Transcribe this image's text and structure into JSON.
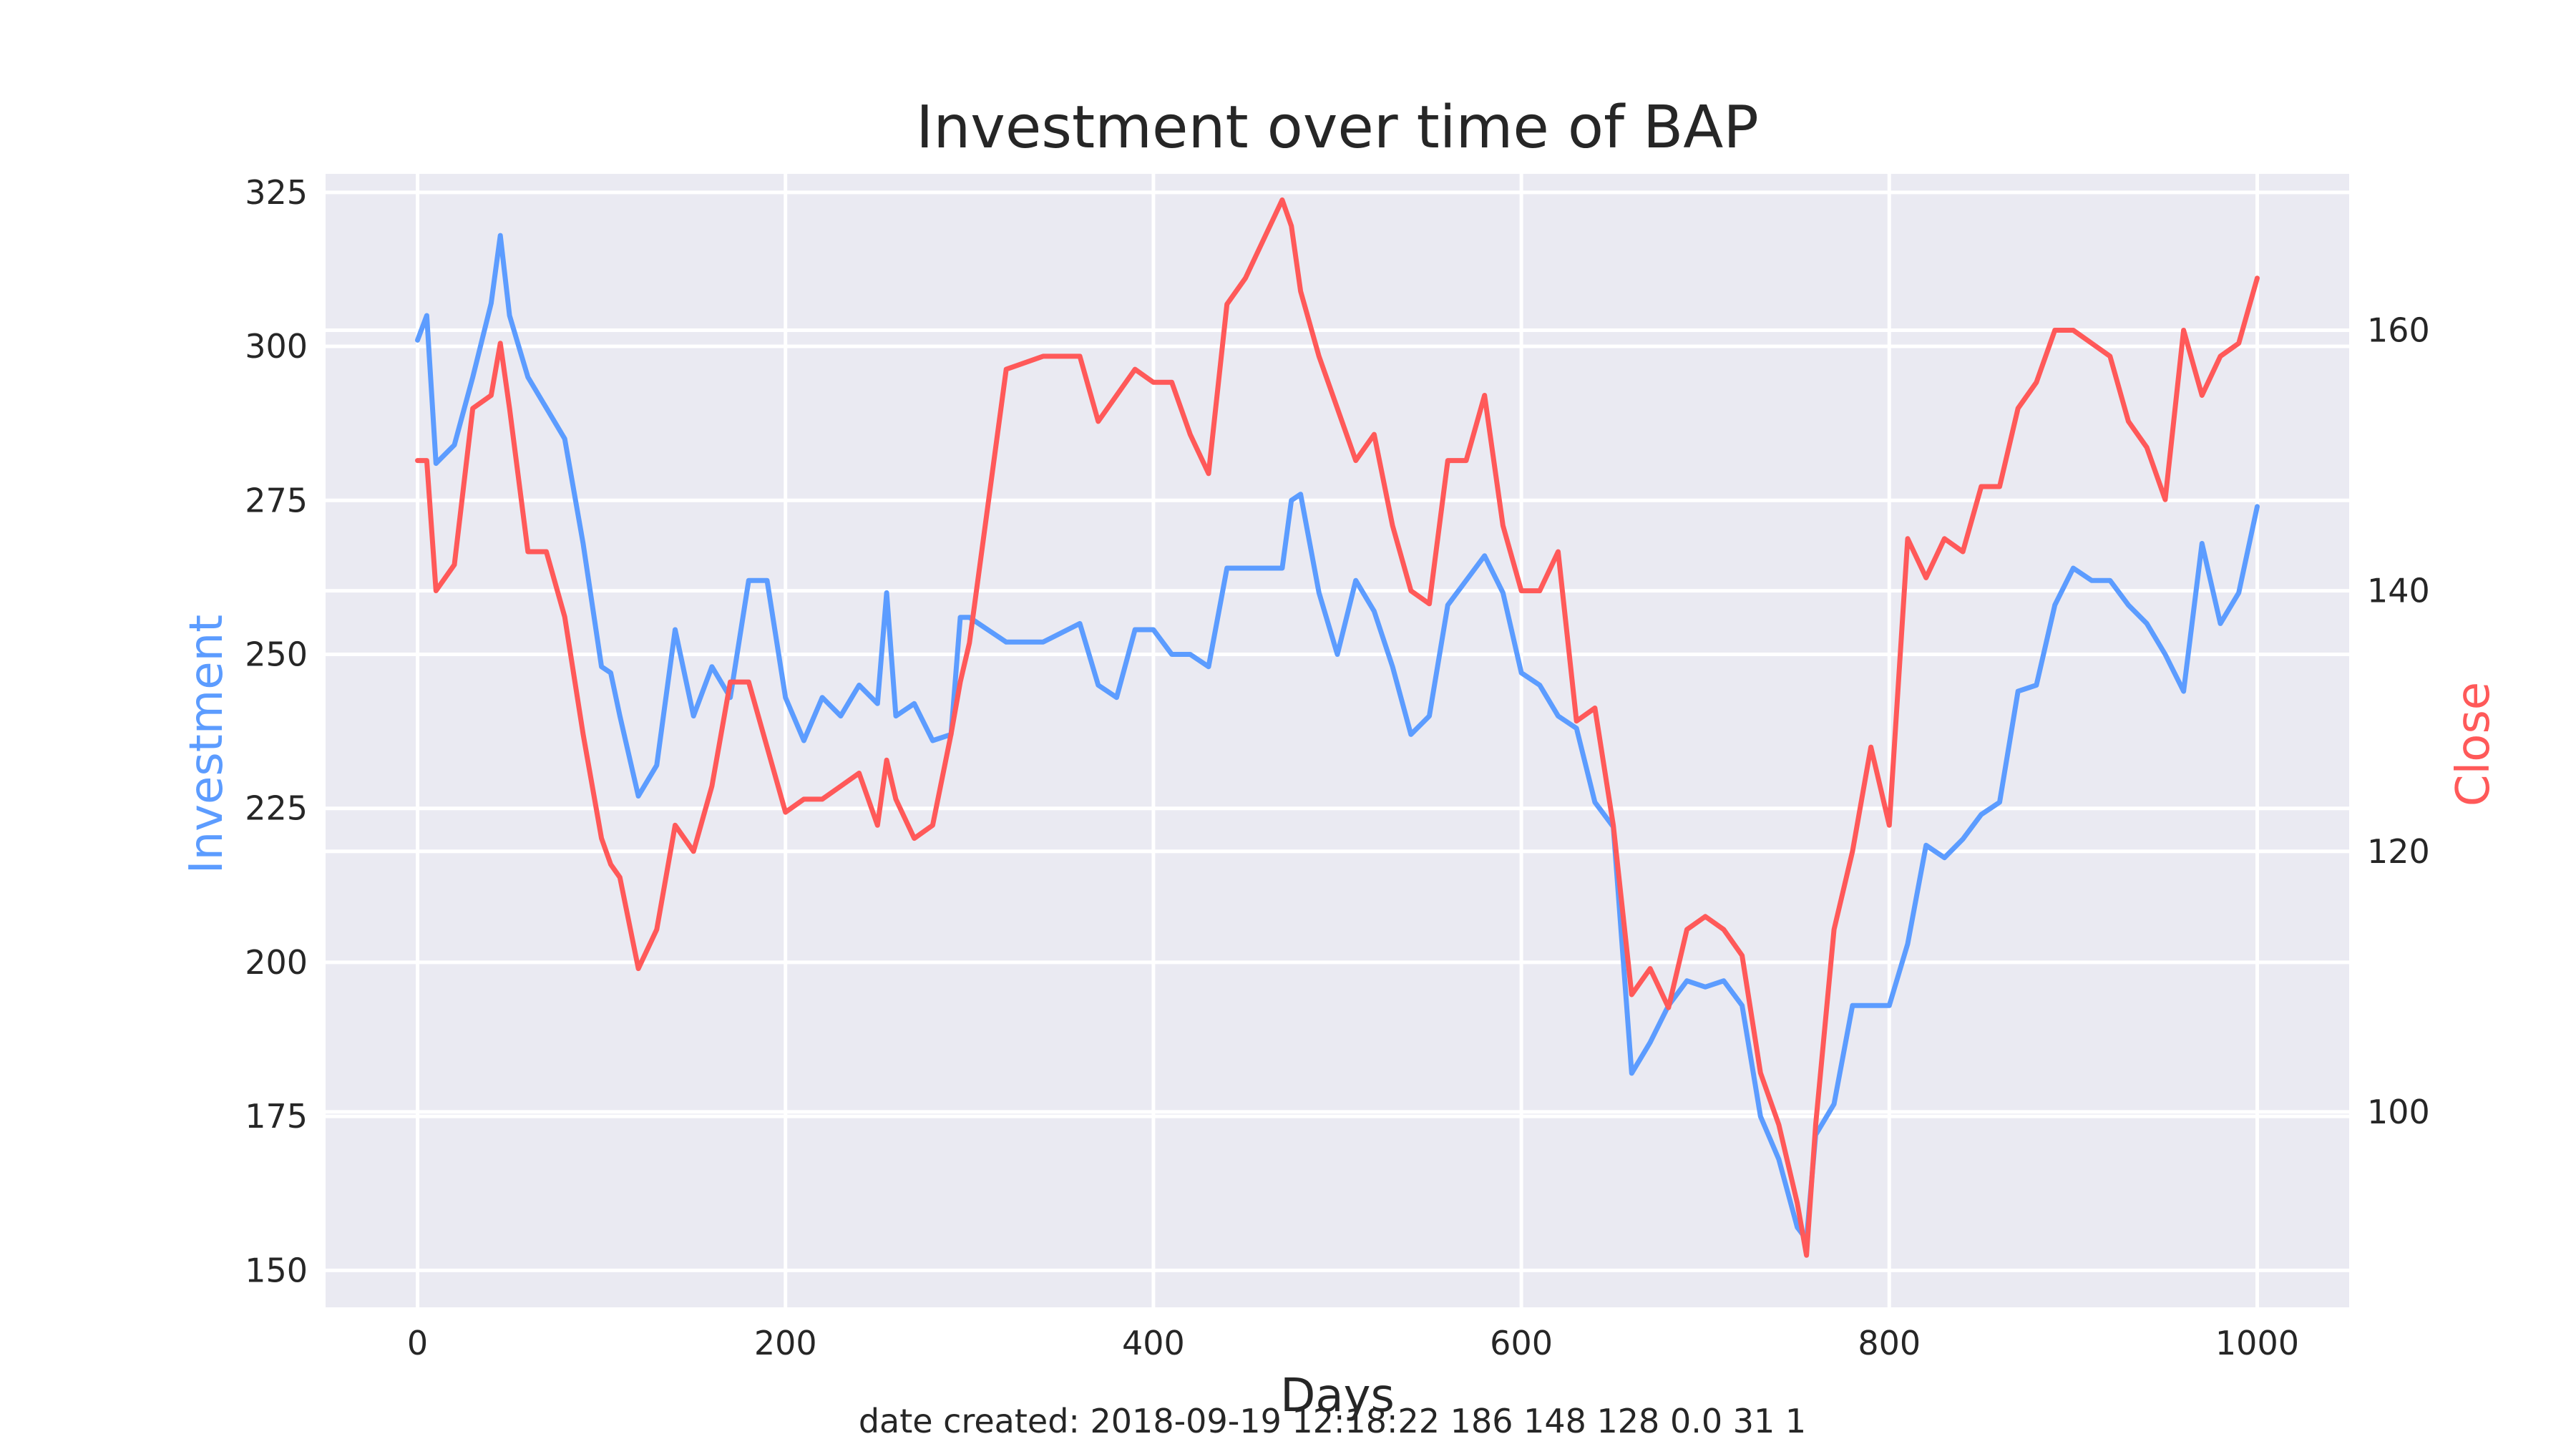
{
  "chart_data": {
    "type": "line",
    "title": "Investment over time of BAP",
    "xlabel": "Days",
    "footer": "date created: 2018-09-19 12:18:22 186 148 128 0.0 31 1",
    "xlim": [
      -50,
      1050
    ],
    "xticks": [
      0,
      200,
      400,
      600,
      800,
      1000
    ],
    "left_axis": {
      "label": "Investment",
      "color": "#5c9cff",
      "ylim": [
        144,
        328
      ],
      "ticks": [
        150,
        175,
        200,
        225,
        250,
        275,
        300,
        325
      ]
    },
    "right_axis": {
      "label": "Close",
      "color": "#ff5959",
      "ylim": [
        85,
        172
      ],
      "ticks": [
        100,
        120,
        140,
        160
      ]
    },
    "grid": true,
    "background": "#eaeaf2",
    "series": [
      {
        "axis": "left",
        "color": "#5c9cff",
        "x": [
          0,
          5,
          10,
          20,
          30,
          40,
          45,
          50,
          60,
          70,
          80,
          90,
          100,
          105,
          110,
          120,
          130,
          140,
          150,
          160,
          170,
          180,
          190,
          200,
          210,
          220,
          230,
          240,
          250,
          255,
          260,
          270,
          280,
          290,
          295,
          300,
          320,
          340,
          360,
          370,
          380,
          390,
          400,
          410,
          420,
          430,
          440,
          450,
          470,
          475,
          480,
          490,
          500,
          510,
          520,
          530,
          540,
          550,
          560,
          570,
          580,
          590,
          600,
          610,
          620,
          630,
          640,
          650,
          660,
          670,
          680,
          690,
          700,
          710,
          720,
          730,
          740,
          750,
          755,
          760,
          770,
          780,
          790,
          800,
          810,
          820,
          830,
          840,
          850,
          860,
          870,
          880,
          890,
          900,
          910,
          920,
          930,
          940,
          950,
          960,
          970,
          980,
          990,
          1000
        ],
        "y": [
          301,
          305,
          281,
          284,
          295,
          307,
          318,
          305,
          295,
          290,
          285,
          268,
          248,
          247,
          240,
          227,
          232,
          254,
          240,
          248,
          243,
          262,
          262,
          243,
          236,
          243,
          240,
          245,
          242,
          260,
          240,
          242,
          236,
          237,
          256,
          256,
          252,
          252,
          255,
          245,
          243,
          254,
          254,
          250,
          250,
          248,
          264,
          264,
          264,
          275,
          276,
          260,
          250,
          262,
          257,
          248,
          237,
          240,
          258,
          262,
          266,
          260,
          247,
          245,
          240,
          238,
          226,
          222,
          182,
          187,
          193,
          197,
          196,
          197,
          193,
          175,
          168,
          157,
          155,
          172,
          177,
          193,
          193,
          193,
          203,
          219,
          217,
          220,
          224,
          226,
          244,
          245,
          258,
          264,
          262,
          262,
          258,
          255,
          250,
          244,
          268,
          255,
          260,
          274
        ]
      },
      {
        "axis": "right",
        "color": "#ff5959",
        "x": [
          0,
          5,
          10,
          20,
          30,
          40,
          45,
          50,
          60,
          70,
          80,
          90,
          100,
          105,
          110,
          120,
          130,
          140,
          150,
          160,
          170,
          180,
          190,
          200,
          210,
          220,
          230,
          240,
          250,
          255,
          260,
          270,
          280,
          290,
          295,
          300,
          320,
          340,
          360,
          370,
          380,
          390,
          400,
          410,
          420,
          430,
          440,
          450,
          470,
          475,
          480,
          490,
          500,
          510,
          520,
          530,
          540,
          550,
          560,
          570,
          580,
          590,
          600,
          610,
          620,
          630,
          640,
          650,
          660,
          670,
          680,
          690,
          700,
          710,
          720,
          730,
          740,
          750,
          755,
          760,
          770,
          780,
          790,
          800,
          810,
          820,
          830,
          840,
          850,
          860,
          870,
          880,
          890,
          900,
          910,
          920,
          930,
          940,
          950,
          960,
          970,
          980,
          990,
          1000
        ],
        "y": [
          150,
          150,
          140,
          142,
          154,
          155,
          159,
          154,
          143,
          143,
          138,
          129,
          121,
          119,
          118,
          111,
          114,
          122,
          120,
          125,
          133,
          133,
          128,
          123,
          124,
          124,
          125,
          126,
          122,
          127,
          124,
          121,
          122,
          129,
          133,
          136,
          157,
          158,
          158,
          153,
          155,
          157,
          156,
          156,
          152,
          149,
          162,
          164,
          170,
          168,
          163,
          158,
          154,
          150,
          152,
          145,
          140,
          139,
          150,
          150,
          155,
          145,
          140,
          140,
          143,
          130,
          131,
          122,
          109,
          111,
          108,
          114,
          115,
          114,
          112,
          103,
          99,
          93,
          89,
          99,
          114,
          120,
          128,
          122,
          144,
          141,
          144,
          143,
          148,
          148,
          154,
          156,
          160,
          160,
          159,
          158,
          153,
          151,
          147,
          160,
          155,
          158,
          159,
          164
        ]
      }
    ]
  }
}
